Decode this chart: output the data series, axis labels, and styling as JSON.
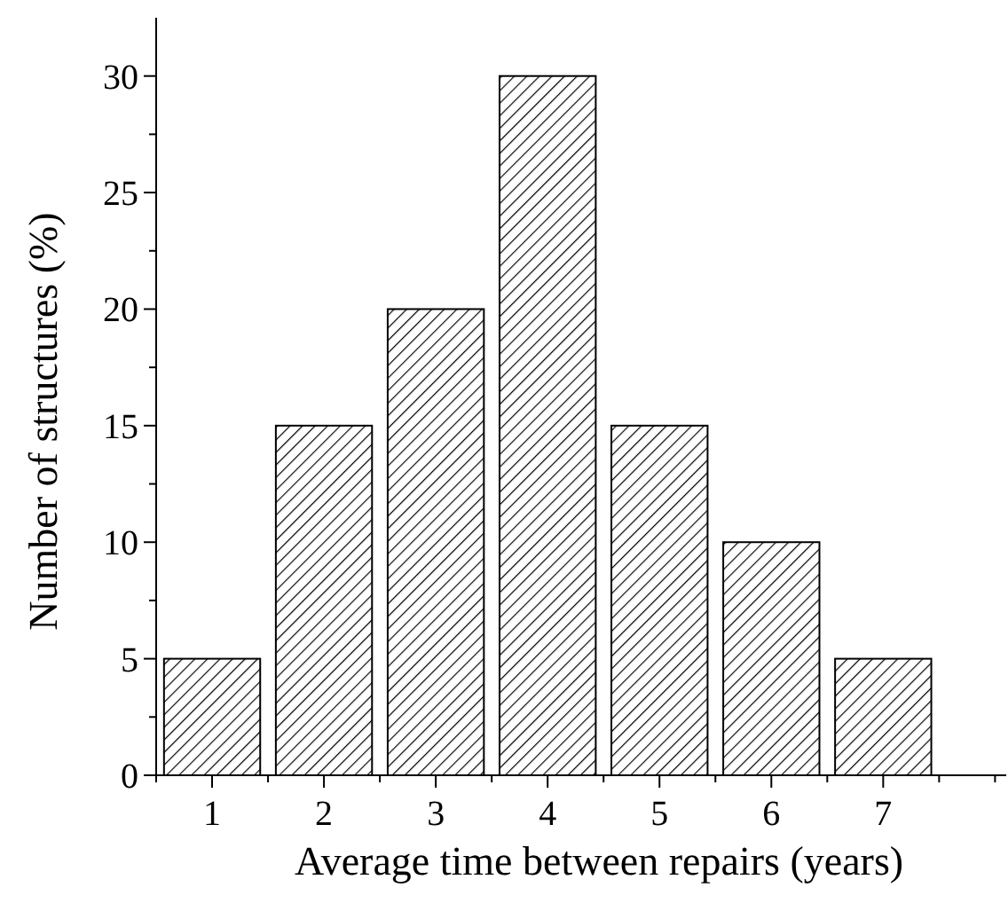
{
  "chart_data": {
    "type": "bar",
    "xlabel": "Average time between repairs (years)",
    "ylabel": "Number of structures (%)",
    "x": [
      1,
      2,
      3,
      4,
      5,
      6,
      7
    ],
    "values": [
      5,
      15,
      20,
      30,
      15,
      10,
      5
    ],
    "color": "#000000",
    "xlim": [
      0.5,
      8.1
    ],
    "xticks": [
      {
        "value": 0.5,
        "label": null
      },
      1,
      {
        "value": 1.5,
        "label": null
      },
      2,
      {
        "value": 2.5,
        "label": null
      },
      3,
      {
        "value": 3.5,
        "label": null
      },
      4,
      {
        "value": 4.5,
        "label": null
      },
      5,
      {
        "value": 5.5,
        "label": null
      },
      6,
      {
        "value": 6.5,
        "label": null
      },
      7,
      {
        "value": 7.5,
        "label": null
      },
      {
        "value": 8,
        "label": null
      }
    ],
    "ylim": [
      0,
      32.5
    ],
    "yticks": [
      0,
      {
        "value": 2.5,
        "label": null
      },
      5,
      {
        "value": 7.5,
        "label": null
      },
      10,
      {
        "value": 12.5,
        "label": null
      },
      15,
      {
        "value": 17.5,
        "label": null
      },
      20,
      {
        "value": 22.5,
        "label": null
      },
      25,
      {
        "value": 27.5,
        "label": null
      },
      30
    ],
    "grid": false
  }
}
